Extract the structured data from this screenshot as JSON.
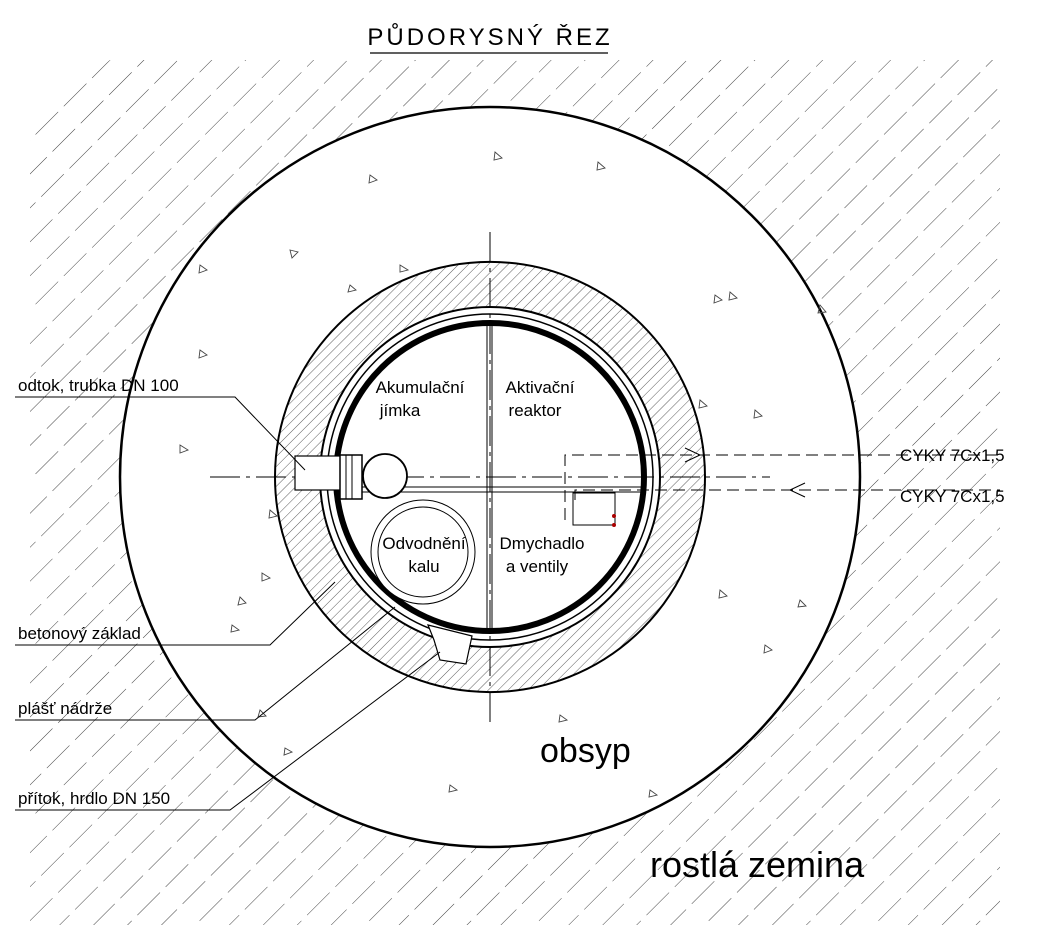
{
  "title": "PŮDORYSNÝ ŘEZ",
  "chambers": [
    {
      "lines": [
        "Akumulační",
        "jímka"
      ]
    },
    {
      "lines": [
        "Aktivační",
        "reaktor"
      ]
    },
    {
      "lines": [
        "Odvodnění",
        "kalu"
      ]
    },
    {
      "lines": [
        "Dmychadlo",
        "a ventily"
      ]
    }
  ],
  "callouts": [
    {
      "label": "odtok, trubka DN 100"
    },
    {
      "label": "betonový základ"
    },
    {
      "label": "plášť nádrže"
    },
    {
      "label": "přítok, hrdlo DN 150"
    }
  ],
  "cables": [
    {
      "label": "CYKY 7Cx1,5"
    },
    {
      "label": "CYKY 7Cx1,5"
    }
  ],
  "zones": {
    "backfill": "obsyp",
    "soil": "rostlá zemina"
  }
}
